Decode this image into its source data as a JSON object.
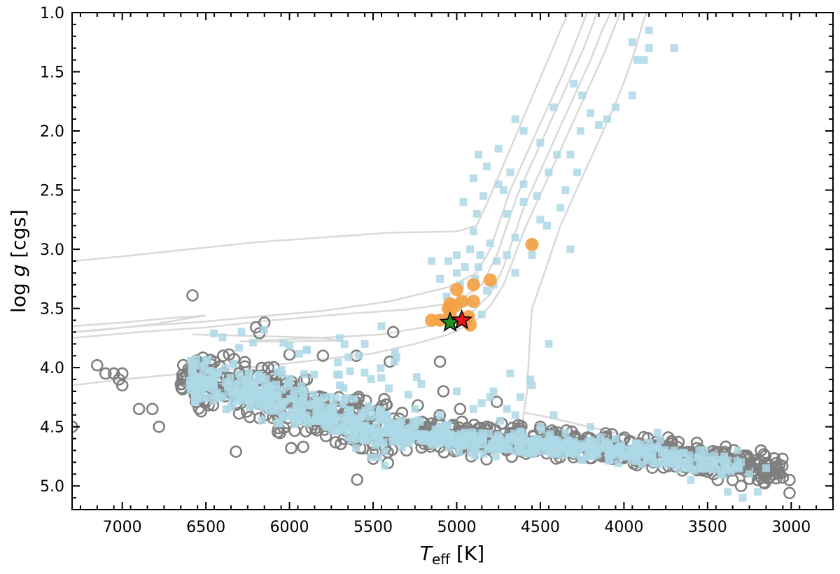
{
  "chart_data": {
    "type": "scatter",
    "title": "",
    "xlabel": {
      "main": "T",
      "sub": "eff",
      "unit": " [K]"
    },
    "ylabel": {
      "pre": "log ",
      "italic": "g",
      "post": " [cgs]"
    },
    "xlim": [
      7300,
      2750
    ],
    "ylim": [
      5.2,
      1.0
    ],
    "x_reversed": true,
    "y_reversed": true,
    "grid": false,
    "legend": "none",
    "x_ticks": [
      7000,
      6500,
      6000,
      5500,
      5000,
      4500,
      4000,
      3500,
      3000
    ],
    "x_tick_labels": [
      "7000",
      "6500",
      "6000",
      "5500",
      "5000",
      "4500",
      "4000",
      "3500",
      "3000"
    ],
    "y_ticks": [
      1.0,
      1.5,
      2.0,
      2.5,
      3.0,
      3.5,
      4.0,
      4.5,
      5.0
    ],
    "y_tick_labels": [
      "1.0",
      "1.5",
      "2.0",
      "2.5",
      "3.0",
      "3.5",
      "4.0",
      "4.5",
      "5.0"
    ],
    "colors": {
      "isochrone": "#d9d9d9",
      "grey_circles": "#7f7f7f",
      "light_blue_squares": "#add8e6",
      "orange_circles": "#f5a043",
      "red_star": "#e8161b",
      "green_star": "#1f8f1f",
      "star_edge": "#000000"
    },
    "isochrones": [
      {
        "points": [
          [
            7300,
            3.1
          ],
          [
            7000,
            3.06
          ],
          [
            6600,
            3.0
          ],
          [
            6200,
            2.94
          ],
          [
            5800,
            2.9
          ],
          [
            5400,
            2.86
          ],
          [
            5000,
            2.85
          ],
          [
            4880,
            2.8
          ],
          [
            4800,
            2.55
          ],
          [
            4740,
            2.35
          ],
          [
            4680,
            2.15
          ],
          [
            4620,
            1.95
          ],
          [
            4560,
            1.75
          ],
          [
            4500,
            1.55
          ],
          [
            4440,
            1.35
          ],
          [
            4380,
            1.15
          ],
          [
            4330,
            1.0
          ]
        ]
      },
      {
        "points": [
          [
            7300,
            3.65
          ],
          [
            7000,
            3.62
          ],
          [
            6700,
            3.58
          ],
          [
            6500,
            3.56
          ],
          [
            6800,
            3.63
          ],
          [
            7100,
            3.68
          ],
          [
            7300,
            3.7
          ],
          [
            6900,
            3.65
          ],
          [
            6500,
            3.61
          ],
          [
            6200,
            3.57
          ],
          [
            5800,
            3.52
          ],
          [
            5400,
            3.44
          ],
          [
            5050,
            3.32
          ],
          [
            4880,
            3.2
          ],
          [
            4800,
            3.0
          ],
          [
            4740,
            2.75
          ],
          [
            4680,
            2.5
          ],
          [
            4600,
            2.25
          ],
          [
            4520,
            2.0
          ],
          [
            4440,
            1.75
          ],
          [
            4360,
            1.5
          ],
          [
            4290,
            1.25
          ],
          [
            4220,
            1.0
          ]
        ]
      },
      {
        "points": [
          [
            7300,
            3.75
          ],
          [
            6900,
            3.7
          ],
          [
            6500,
            3.66
          ],
          [
            6100,
            3.6
          ],
          [
            5700,
            3.55
          ],
          [
            5300,
            3.51
          ],
          [
            5000,
            3.45
          ],
          [
            4850,
            3.3
          ],
          [
            4760,
            3.05
          ],
          [
            4700,
            2.8
          ],
          [
            4640,
            2.55
          ],
          [
            4560,
            2.3
          ],
          [
            4480,
            2.05
          ],
          [
            4400,
            1.8
          ],
          [
            4320,
            1.55
          ],
          [
            4240,
            1.3
          ],
          [
            4160,
            1.0
          ]
        ]
      },
      {
        "points": [
          [
            6580,
            3.72
          ],
          [
            6300,
            3.73
          ],
          [
            6000,
            3.74
          ],
          [
            5800,
            3.75
          ],
          [
            5700,
            3.77
          ],
          [
            6000,
            3.78
          ],
          [
            6300,
            3.78
          ],
          [
            6000,
            3.76
          ],
          [
            5700,
            3.74
          ],
          [
            5450,
            3.72
          ],
          [
            5200,
            3.66
          ],
          [
            5000,
            3.6
          ],
          [
            4900,
            3.52
          ],
          [
            4800,
            3.38
          ],
          [
            4720,
            3.15
          ],
          [
            4660,
            2.9
          ],
          [
            4600,
            2.65
          ],
          [
            4520,
            2.4
          ],
          [
            4440,
            2.15
          ],
          [
            4360,
            1.9
          ],
          [
            4280,
            1.65
          ],
          [
            4200,
            1.4
          ],
          [
            4130,
            1.15
          ],
          [
            4080,
            1.0
          ]
        ]
      },
      {
        "points": [
          [
            7300,
            4.15
          ],
          [
            7000,
            4.1
          ],
          [
            6700,
            4.06
          ],
          [
            6400,
            4.02
          ],
          [
            6100,
            3.98
          ],
          [
            5800,
            3.93
          ],
          [
            5500,
            3.88
          ],
          [
            5250,
            3.8
          ],
          [
            5050,
            3.72
          ],
          [
            4900,
            3.62
          ],
          [
            4800,
            3.48
          ],
          [
            4720,
            3.3
          ],
          [
            4660,
            3.08
          ],
          [
            4600,
            2.85
          ],
          [
            4520,
            2.6
          ],
          [
            4440,
            2.35
          ],
          [
            4360,
            2.1
          ],
          [
            4280,
            1.85
          ],
          [
            4200,
            1.6
          ],
          [
            4120,
            1.35
          ],
          [
            4050,
            1.1
          ],
          [
            4020,
            1.0
          ]
        ]
      },
      {
        "points": [
          [
            4620,
            4.55
          ],
          [
            4600,
            4.4
          ],
          [
            4580,
            4.2
          ],
          [
            4570,
            3.95
          ],
          [
            4560,
            3.7
          ],
          [
            4550,
            3.5
          ],
          [
            4500,
            3.3
          ],
          [
            4440,
            3.05
          ],
          [
            4380,
            2.8
          ],
          [
            4300,
            2.55
          ],
          [
            4220,
            2.3
          ],
          [
            4140,
            2.05
          ],
          [
            4060,
            1.8
          ],
          [
            3990,
            1.55
          ],
          [
            3930,
            1.3
          ],
          [
            3880,
            1.05
          ],
          [
            3860,
            1.0
          ]
        ]
      },
      {
        "points": [
          [
            4600,
            4.38
          ],
          [
            4450,
            4.42
          ],
          [
            4300,
            4.47
          ],
          [
            4150,
            4.52
          ],
          [
            4000,
            4.57
          ],
          [
            3850,
            4.61
          ],
          [
            3700,
            4.65
          ],
          [
            3550,
            4.7
          ],
          [
            3400,
            4.76
          ],
          [
            3280,
            4.82
          ]
        ]
      }
    ],
    "giant_squares": [
      [
        3850,
        1.3
      ],
      [
        3920,
        1.4
      ],
      [
        3880,
        1.4
      ],
      [
        3950,
        1.25
      ],
      [
        3850,
        1.15
      ],
      [
        3700,
        1.3
      ],
      [
        3950,
        1.7
      ],
      [
        4050,
        1.8
      ],
      [
        4100,
        1.9
      ],
      [
        4150,
        1.95
      ],
      [
        4250,
        1.7
      ],
      [
        4300,
        1.6
      ],
      [
        4200,
        1.85
      ],
      [
        4260,
        2.0
      ],
      [
        4320,
        2.2
      ],
      [
        4280,
        2.35
      ],
      [
        4350,
        2.5
      ],
      [
        4400,
        2.2
      ],
      [
        4450,
        2.35
      ],
      [
        4500,
        2.1
      ],
      [
        4380,
        2.65
      ],
      [
        4460,
        2.8
      ],
      [
        4520,
        2.55
      ],
      [
        4600,
        2.6
      ],
      [
        4550,
        2.95
      ],
      [
        4650,
        2.9
      ],
      [
        4700,
        2.7
      ],
      [
        4750,
        2.45
      ],
      [
        4820,
        2.3
      ],
      [
        4840,
        2.55
      ],
      [
        4880,
        2.7
      ],
      [
        4900,
        2.85
      ],
      [
        4920,
        3.0
      ],
      [
        4860,
        3.05
      ],
      [
        4800,
        2.95
      ],
      [
        4760,
        3.1
      ],
      [
        4700,
        3.05
      ],
      [
        4950,
        3.15
      ],
      [
        5000,
        3.2
      ],
      [
        5050,
        3.1
      ],
      [
        4980,
        3.3
      ],
      [
        4890,
        3.25
      ],
      [
        4820,
        3.35
      ],
      [
        4780,
        3.3
      ],
      [
        5150,
        3.1
      ],
      [
        5100,
        3.25
      ],
      [
        4870,
        2.2
      ],
      [
        4750,
        2.15
      ],
      [
        4600,
        2.45
      ],
      [
        4420,
        1.8
      ],
      [
        4650,
        1.9
      ],
      [
        4320,
        3.0
      ],
      [
        5060,
        3.4
      ],
      [
        5020,
        3.5
      ],
      [
        4930,
        3.45
      ],
      [
        4850,
        3.55
      ],
      [
        4600,
        2.0
      ],
      [
        4680,
        2.35
      ],
      [
        4720,
        2.5
      ],
      [
        4900,
        2.4
      ],
      [
        4960,
        2.6
      ],
      [
        4500,
        2.75
      ],
      [
        4550,
        3.05
      ],
      [
        4650,
        3.2
      ],
      [
        4870,
        3.15
      ],
      [
        5000,
        3.05
      ]
    ],
    "extra_squares": [
      [
        4450,
        3.8
      ],
      [
        4550,
        4.15
      ],
      [
        4620,
        4.25
      ],
      [
        4700,
        4.35
      ],
      [
        4740,
        4.45
      ],
      [
        4600,
        4.6
      ],
      [
        4500,
        4.5
      ],
      [
        4350,
        4.55
      ],
      [
        4420,
        4.4
      ],
      [
        4560,
        4.1
      ],
      [
        4680,
        4.05
      ],
      [
        4800,
        4.25
      ],
      [
        4900,
        4.35
      ],
      [
        5000,
        4.2
      ],
      [
        5100,
        4.4
      ],
      [
        5250,
        4.35
      ],
      [
        5350,
        4.6
      ],
      [
        5450,
        3.65
      ],
      [
        5550,
        3.8
      ],
      [
        5700,
        3.75
      ],
      [
        5100,
        4.5
      ],
      [
        4950,
        4.55
      ],
      [
        4850,
        4.3
      ],
      [
        4780,
        4.2
      ],
      [
        4650,
        4.4
      ],
      [
        4200,
        4.5
      ],
      [
        4050,
        4.6
      ],
      [
        3900,
        4.65
      ],
      [
        3800,
        4.55
      ],
      [
        3700,
        4.7
      ],
      [
        3550,
        4.7
      ],
      [
        3400,
        4.75
      ],
      [
        3300,
        4.8
      ],
      [
        3250,
        4.9
      ],
      [
        3200,
        5.05
      ],
      [
        3150,
        4.85
      ],
      [
        3320,
        4.7
      ],
      [
        3500,
        4.85
      ],
      [
        3600,
        4.95
      ],
      [
        3380,
        5.05
      ],
      [
        3290,
        5.1
      ],
      [
        3420,
        4.9
      ]
    ],
    "ms_squares": {
      "seed": 4242,
      "count": 760,
      "x_range": [
        6600,
        3300
      ],
      "spread": 0.08,
      "scatter_range": [
        3.6,
        4.25
      ],
      "scatter_count": 70
    },
    "ms_circles": {
      "seed": 1717,
      "count": 820,
      "x_range": [
        6650,
        3050
      ],
      "spread": 0.09
    },
    "circle_outliers": [
      [
        7300,
        4.5
      ],
      [
        7150,
        3.98
      ],
      [
        7100,
        4.05
      ],
      [
        7050,
        4.05
      ],
      [
        7020,
        4.1
      ],
      [
        7000,
        4.05
      ],
      [
        7000,
        4.15
      ],
      [
        6900,
        4.35
      ],
      [
        6820,
        4.35
      ],
      [
        6780,
        4.5
      ],
      [
        6580,
        3.39
      ],
      [
        6200,
        3.66
      ],
      [
        6180,
        3.71
      ],
      [
        6150,
        3.62
      ],
      [
        6000,
        3.89
      ],
      [
        5800,
        3.9
      ],
      [
        5600,
        3.9
      ],
      [
        5400,
        3.95
      ],
      [
        5380,
        3.7
      ],
      [
        5100,
        3.95
      ],
      [
        5080,
        4.2
      ],
      [
        4980,
        4.35
      ],
      [
        4760,
        4.29
      ],
      [
        4500,
        4.5
      ],
      [
        4420,
        4.55
      ],
      [
        6320,
        4.71
      ],
      [
        5990,
        4.68
      ],
      [
        5500,
        4.77
      ],
      [
        5300,
        4.7
      ],
      [
        4050,
        4.71
      ],
      [
        3650,
        4.87
      ],
      [
        3500,
        4.88
      ],
      [
        3350,
        4.95
      ],
      [
        3300,
        5.0
      ],
      [
        3250,
        4.94
      ],
      [
        3200,
        4.95
      ],
      [
        3010,
        4.95
      ],
      [
        3010,
        5.06
      ],
      [
        3700,
        4.72
      ],
      [
        3900,
        4.8
      ]
    ],
    "orange_circles": [
      [
        4550,
        2.96
      ],
      [
        4800,
        3.26
      ],
      [
        4900,
        3.3
      ],
      [
        5000,
        3.34
      ],
      [
        4900,
        3.44
      ],
      [
        5040,
        3.46
      ],
      [
        4970,
        3.44
      ],
      [
        5010,
        3.48
      ],
      [
        5050,
        3.5
      ],
      [
        4930,
        3.57
      ],
      [
        5150,
        3.6
      ],
      [
        5100,
        3.6
      ],
      [
        4950,
        3.6
      ],
      [
        4920,
        3.64
      ],
      [
        5040,
        3.55
      ]
    ],
    "red_star": [
      4970,
      3.6
    ],
    "green_star": [
      5040,
      3.62
    ]
  }
}
